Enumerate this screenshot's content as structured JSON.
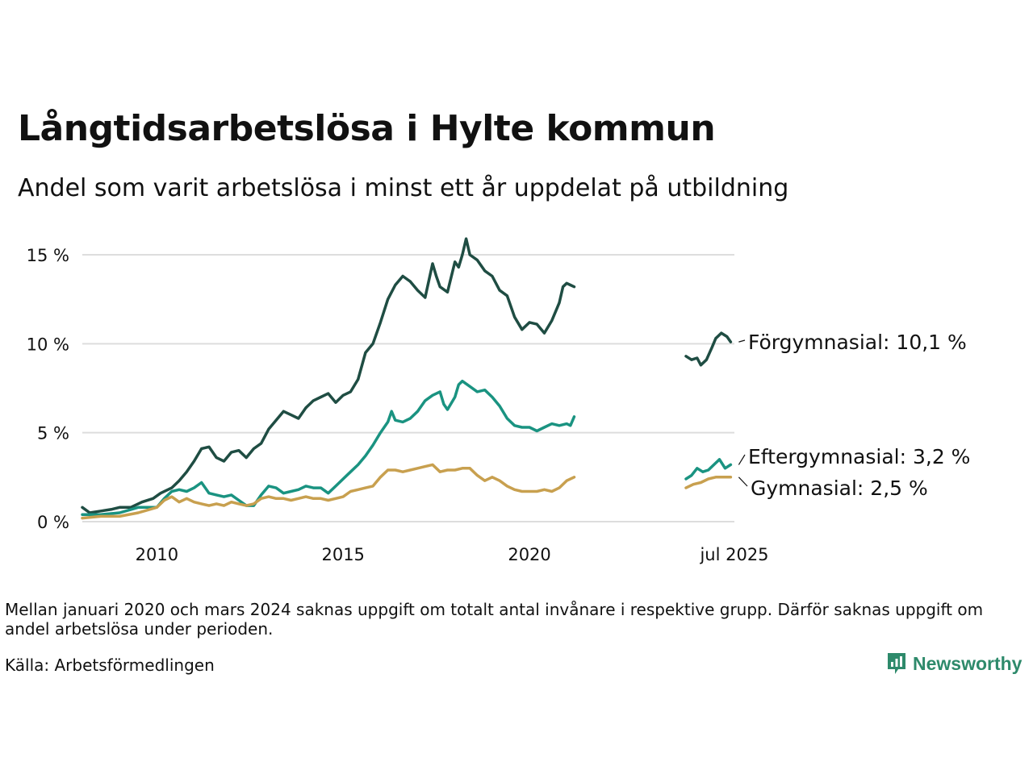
{
  "title": "Långtidsarbetslösa i Hylte kommun",
  "subtitle": "Andel som varit arbetslösa i minst ett år uppdelat på utbildning",
  "footnote": "Mellan januari 2020 och mars 2024 saknas uppgift om totalt antal invånare i respektive grupp. Därför saknas uppgift om andel arbetslösa under perioden.",
  "source": "Källa: Arbetsförmedlingen",
  "brand": "Newsworthy",
  "colors": {
    "forgymnasial": "#1f4d43",
    "eftergymnasial": "#1a9381",
    "gymnasial": "#c8a04f",
    "grid": "#dddddd",
    "brand": "#2e8a6b"
  },
  "chart_data": {
    "type": "line",
    "title": "Långtidsarbetslösa i Hylte kommun",
    "subtitle": "Andel som varit arbetslösa i minst ett år uppdelat på utbildning",
    "ylim": [
      0,
      15
    ],
    "y_ticks": [
      "0 %",
      "5 %",
      "10 %",
      "15 %"
    ],
    "y_tick_values": [
      0,
      5,
      10,
      15
    ],
    "x_ticks": [
      "2010",
      "2015",
      "2020",
      "jul 2025"
    ],
    "x_tick_values": [
      2010,
      2015,
      2020,
      2025.5
    ],
    "xlim": [
      2008.0,
      2025.5
    ],
    "grid": true,
    "series": [
      {
        "name": "Förgymnasial",
        "end_label": "Förgymnasial: 10,1 %",
        "color": "#1f4d43",
        "segments": [
          [
            [
              2008.0,
              0.8
            ],
            [
              2008.2,
              0.5
            ],
            [
              2008.5,
              0.6
            ],
            [
              2008.8,
              0.7
            ],
            [
              2009.0,
              0.8
            ],
            [
              2009.3,
              0.8
            ],
            [
              2009.6,
              1.1
            ],
            [
              2009.9,
              1.3
            ],
            [
              2010.1,
              1.6
            ],
            [
              2010.4,
              1.9
            ],
            [
              2010.6,
              2.3
            ],
            [
              2010.8,
              2.8
            ],
            [
              2011.0,
              3.4
            ],
            [
              2011.2,
              4.1
            ],
            [
              2011.4,
              4.2
            ],
            [
              2011.6,
              3.6
            ],
            [
              2011.8,
              3.4
            ],
            [
              2012.0,
              3.9
            ],
            [
              2012.2,
              4.0
            ],
            [
              2012.4,
              3.6
            ],
            [
              2012.6,
              4.1
            ],
            [
              2012.8,
              4.4
            ],
            [
              2013.0,
              5.2
            ],
            [
              2013.2,
              5.7
            ],
            [
              2013.4,
              6.2
            ],
            [
              2013.6,
              6.0
            ],
            [
              2013.8,
              5.8
            ],
            [
              2014.0,
              6.4
            ],
            [
              2014.2,
              6.8
            ],
            [
              2014.4,
              7.0
            ],
            [
              2014.6,
              7.2
            ],
            [
              2014.8,
              6.7
            ],
            [
              2015.0,
              7.1
            ],
            [
              2015.2,
              7.3
            ],
            [
              2015.4,
              8.0
            ],
            [
              2015.6,
              9.5
            ],
            [
              2015.8,
              10.0
            ],
            [
              2016.0,
              11.2
            ],
            [
              2016.2,
              12.5
            ],
            [
              2016.4,
              13.3
            ],
            [
              2016.6,
              13.8
            ],
            [
              2016.8,
              13.5
            ],
            [
              2017.0,
              13.0
            ],
            [
              2017.2,
              12.6
            ],
            [
              2017.4,
              14.5
            ],
            [
              2017.5,
              13.8
            ],
            [
              2017.6,
              13.2
            ],
            [
              2017.8,
              12.9
            ],
            [
              2018.0,
              14.6
            ],
            [
              2018.1,
              14.3
            ],
            [
              2018.2,
              15.0
            ],
            [
              2018.3,
              15.9
            ],
            [
              2018.4,
              15.0
            ],
            [
              2018.6,
              14.7
            ],
            [
              2018.8,
              14.1
            ],
            [
              2019.0,
              13.8
            ],
            [
              2019.2,
              13.0
            ],
            [
              2019.4,
              12.7
            ],
            [
              2019.6,
              11.5
            ],
            [
              2019.8,
              10.8
            ],
            [
              2020.0,
              11.2
            ],
            [
              2020.2,
              11.1
            ],
            [
              2020.4,
              10.6
            ],
            [
              2020.6,
              11.3
            ],
            [
              2020.8,
              12.3
            ],
            [
              2020.9,
              13.2
            ],
            [
              2021.0,
              13.4
            ],
            [
              2021.1,
              13.3
            ],
            [
              2021.2,
              13.2
            ]
          ],
          [
            [
              2024.2,
              9.3
            ],
            [
              2024.35,
              9.1
            ],
            [
              2024.5,
              9.2
            ],
            [
              2024.6,
              8.8
            ],
            [
              2024.75,
              9.1
            ],
            [
              2024.9,
              9.8
            ],
            [
              2025.0,
              10.3
            ],
            [
              2025.15,
              10.6
            ],
            [
              2025.3,
              10.4
            ],
            [
              2025.4,
              10.1
            ]
          ]
        ]
      },
      {
        "name": "Eftergymnasial",
        "end_label": "Eftergymnasial:  3,2 %",
        "color": "#1a9381",
        "segments": [
          [
            [
              2008.0,
              0.4
            ],
            [
              2008.5,
              0.4
            ],
            [
              2009.0,
              0.5
            ],
            [
              2009.5,
              0.8
            ],
            [
              2010.0,
              0.8
            ],
            [
              2010.2,
              1.3
            ],
            [
              2010.4,
              1.7
            ],
            [
              2010.6,
              1.8
            ],
            [
              2010.8,
              1.7
            ],
            [
              2011.0,
              1.9
            ],
            [
              2011.2,
              2.2
            ],
            [
              2011.4,
              1.6
            ],
            [
              2011.6,
              1.5
            ],
            [
              2011.8,
              1.4
            ],
            [
              2012.0,
              1.5
            ],
            [
              2012.2,
              1.2
            ],
            [
              2012.4,
              0.9
            ],
            [
              2012.6,
              0.9
            ],
            [
              2012.8,
              1.5
            ],
            [
              2013.0,
              2.0
            ],
            [
              2013.2,
              1.9
            ],
            [
              2013.4,
              1.6
            ],
            [
              2013.6,
              1.7
            ],
            [
              2013.8,
              1.8
            ],
            [
              2014.0,
              2.0
            ],
            [
              2014.2,
              1.9
            ],
            [
              2014.4,
              1.9
            ],
            [
              2014.6,
              1.6
            ],
            [
              2014.8,
              2.0
            ],
            [
              2015.0,
              2.4
            ],
            [
              2015.2,
              2.8
            ],
            [
              2015.4,
              3.2
            ],
            [
              2015.6,
              3.7
            ],
            [
              2015.8,
              4.3
            ],
            [
              2016.0,
              5.0
            ],
            [
              2016.2,
              5.6
            ],
            [
              2016.3,
              6.2
            ],
            [
              2016.4,
              5.7
            ],
            [
              2016.6,
              5.6
            ],
            [
              2016.8,
              5.8
            ],
            [
              2017.0,
              6.2
            ],
            [
              2017.2,
              6.8
            ],
            [
              2017.4,
              7.1
            ],
            [
              2017.6,
              7.3
            ],
            [
              2017.7,
              6.6
            ],
            [
              2017.8,
              6.3
            ],
            [
              2018.0,
              7.0
            ],
            [
              2018.1,
              7.7
            ],
            [
              2018.2,
              7.9
            ],
            [
              2018.4,
              7.6
            ],
            [
              2018.6,
              7.3
            ],
            [
              2018.8,
              7.4
            ],
            [
              2019.0,
              7.0
            ],
            [
              2019.2,
              6.5
            ],
            [
              2019.4,
              5.8
            ],
            [
              2019.6,
              5.4
            ],
            [
              2019.8,
              5.3
            ],
            [
              2020.0,
              5.3
            ],
            [
              2020.2,
              5.1
            ],
            [
              2020.4,
              5.3
            ],
            [
              2020.6,
              5.5
            ],
            [
              2020.8,
              5.4
            ],
            [
              2021.0,
              5.5
            ],
            [
              2021.1,
              5.4
            ],
            [
              2021.2,
              5.9
            ]
          ],
          [
            [
              2024.2,
              2.4
            ],
            [
              2024.35,
              2.6
            ],
            [
              2024.5,
              3.0
            ],
            [
              2024.65,
              2.8
            ],
            [
              2024.8,
              2.9
            ],
            [
              2024.95,
              3.2
            ],
            [
              2025.1,
              3.5
            ],
            [
              2025.25,
              3.0
            ],
            [
              2025.4,
              3.2
            ]
          ]
        ]
      },
      {
        "name": "Gymnasial",
        "end_label": "Gymnasial:  2,5 %",
        "color": "#c8a04f",
        "segments": [
          [
            [
              2008.0,
              0.2
            ],
            [
              2008.5,
              0.3
            ],
            [
              2009.0,
              0.3
            ],
            [
              2009.5,
              0.5
            ],
            [
              2010.0,
              0.8
            ],
            [
              2010.2,
              1.2
            ],
            [
              2010.4,
              1.4
            ],
            [
              2010.6,
              1.1
            ],
            [
              2010.8,
              1.3
            ],
            [
              2011.0,
              1.1
            ],
            [
              2011.2,
              1.0
            ],
            [
              2011.4,
              0.9
            ],
            [
              2011.6,
              1.0
            ],
            [
              2011.8,
              0.9
            ],
            [
              2012.0,
              1.1
            ],
            [
              2012.2,
              1.0
            ],
            [
              2012.4,
              0.9
            ],
            [
              2012.6,
              1.0
            ],
            [
              2012.8,
              1.3
            ],
            [
              2013.0,
              1.4
            ],
            [
              2013.2,
              1.3
            ],
            [
              2013.4,
              1.3
            ],
            [
              2013.6,
              1.2
            ],
            [
              2013.8,
              1.3
            ],
            [
              2014.0,
              1.4
            ],
            [
              2014.2,
              1.3
            ],
            [
              2014.4,
              1.3
            ],
            [
              2014.6,
              1.2
            ],
            [
              2014.8,
              1.3
            ],
            [
              2015.0,
              1.4
            ],
            [
              2015.2,
              1.7
            ],
            [
              2015.4,
              1.8
            ],
            [
              2015.6,
              1.9
            ],
            [
              2015.8,
              2.0
            ],
            [
              2016.0,
              2.5
            ],
            [
              2016.2,
              2.9
            ],
            [
              2016.4,
              2.9
            ],
            [
              2016.6,
              2.8
            ],
            [
              2016.8,
              2.9
            ],
            [
              2017.0,
              3.0
            ],
            [
              2017.2,
              3.1
            ],
            [
              2017.4,
              3.2
            ],
            [
              2017.6,
              2.8
            ],
            [
              2017.8,
              2.9
            ],
            [
              2018.0,
              2.9
            ],
            [
              2018.2,
              3.0
            ],
            [
              2018.4,
              3.0
            ],
            [
              2018.6,
              2.6
            ],
            [
              2018.8,
              2.3
            ],
            [
              2019.0,
              2.5
            ],
            [
              2019.2,
              2.3
            ],
            [
              2019.4,
              2.0
            ],
            [
              2019.6,
              1.8
            ],
            [
              2019.8,
              1.7
            ],
            [
              2020.0,
              1.7
            ],
            [
              2020.2,
              1.7
            ],
            [
              2020.4,
              1.8
            ],
            [
              2020.6,
              1.7
            ],
            [
              2020.8,
              1.9
            ],
            [
              2021.0,
              2.3
            ],
            [
              2021.2,
              2.5
            ]
          ],
          [
            [
              2024.2,
              1.9
            ],
            [
              2024.4,
              2.1
            ],
            [
              2024.6,
              2.2
            ],
            [
              2024.8,
              2.4
            ],
            [
              2025.0,
              2.5
            ],
            [
              2025.2,
              2.5
            ],
            [
              2025.4,
              2.5
            ]
          ]
        ]
      }
    ],
    "annotations": [
      "Förgymnasial: 10,1 %",
      "Eftergymnasial:  3,2 %",
      "Gymnasial:  2,5 %"
    ]
  }
}
